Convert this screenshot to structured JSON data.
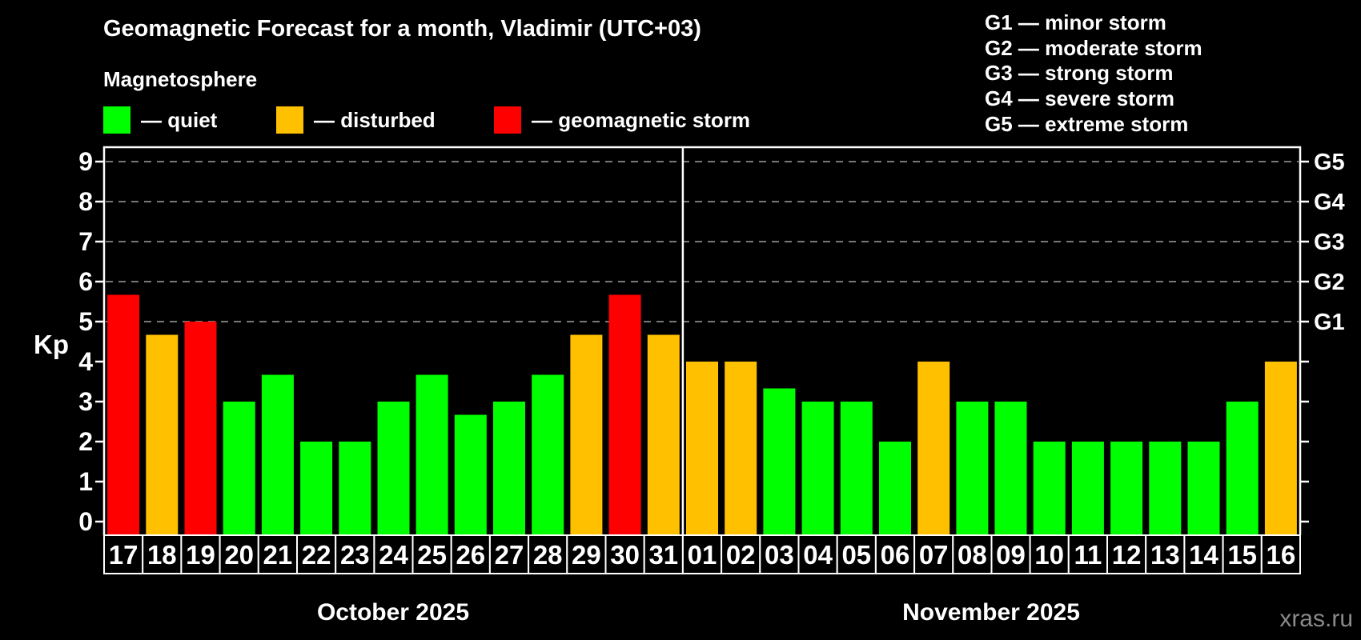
{
  "footer": {
    "watermark": "xras.ru"
  },
  "legend": {
    "heading": "Magnetosphere",
    "items": [
      {
        "status": "quiet",
        "label": "— quiet",
        "color": "#00ff00"
      },
      {
        "status": "disturbed",
        "label": "— disturbed",
        "color": "#ffc000"
      },
      {
        "status": "storm",
        "label": "— geomagnetic storm",
        "color": "#ff0000"
      }
    ]
  },
  "g_legend": [
    "G1 — minor storm",
    "G2 — moderate storm",
    "G3 — strong storm",
    "G4 — severe storm",
    "G5 — extreme storm"
  ],
  "chart_data": {
    "type": "bar",
    "title": "Geomagnetic Forecast for a month, Vladimir (UTC+03)",
    "ylabel": "Kp",
    "ylim": [
      0,
      9.35
    ],
    "yticks": [
      0,
      1,
      2,
      3,
      4,
      5,
      6,
      7,
      8,
      9
    ],
    "grid_kp": [
      5,
      6,
      7,
      8,
      9
    ],
    "grid": "dashed horizontal at Kp 5-9 only",
    "right_axis": [
      {
        "kp": 5,
        "label": "G1"
      },
      {
        "kp": 6,
        "label": "G2"
      },
      {
        "kp": 7,
        "label": "G3"
      },
      {
        "kp": 8,
        "label": "G4"
      },
      {
        "kp": 9,
        "label": "G5"
      }
    ],
    "colors": {
      "quiet": "#00ff00",
      "disturbed": "#ffc000",
      "storm": "#ff0000",
      "grid": "#a0a0a0",
      "axis": "#ffffff"
    },
    "series": [
      {
        "month": "October 2025",
        "days": [
          {
            "day": "17",
            "kp": 5.67,
            "status": "storm"
          },
          {
            "day": "18",
            "kp": 4.67,
            "status": "disturbed"
          },
          {
            "day": "19",
            "kp": 5.0,
            "status": "storm"
          },
          {
            "day": "20",
            "kp": 3.0,
            "status": "quiet"
          },
          {
            "day": "21",
            "kp": 3.67,
            "status": "quiet"
          },
          {
            "day": "22",
            "kp": 2.0,
            "status": "quiet"
          },
          {
            "day": "23",
            "kp": 2.0,
            "status": "quiet"
          },
          {
            "day": "24",
            "kp": 3.0,
            "status": "quiet"
          },
          {
            "day": "25",
            "kp": 3.67,
            "status": "quiet"
          },
          {
            "day": "26",
            "kp": 2.67,
            "status": "quiet"
          },
          {
            "day": "27",
            "kp": 3.0,
            "status": "quiet"
          },
          {
            "day": "28",
            "kp": 3.67,
            "status": "quiet"
          },
          {
            "day": "29",
            "kp": 4.67,
            "status": "disturbed"
          },
          {
            "day": "30",
            "kp": 5.67,
            "status": "storm"
          },
          {
            "day": "31",
            "kp": 4.67,
            "status": "disturbed"
          }
        ]
      },
      {
        "month": "November 2025",
        "days": [
          {
            "day": "01",
            "kp": 4.0,
            "status": "disturbed"
          },
          {
            "day": "02",
            "kp": 4.0,
            "status": "disturbed"
          },
          {
            "day": "03",
            "kp": 3.33,
            "status": "quiet"
          },
          {
            "day": "04",
            "kp": 3.0,
            "status": "quiet"
          },
          {
            "day": "05",
            "kp": 3.0,
            "status": "quiet"
          },
          {
            "day": "06",
            "kp": 2.0,
            "status": "quiet"
          },
          {
            "day": "07",
            "kp": 4.0,
            "status": "disturbed"
          },
          {
            "day": "08",
            "kp": 3.0,
            "status": "quiet"
          },
          {
            "day": "09",
            "kp": 3.0,
            "status": "quiet"
          },
          {
            "day": "10",
            "kp": 2.0,
            "status": "quiet"
          },
          {
            "day": "11",
            "kp": 2.0,
            "status": "quiet"
          },
          {
            "day": "12",
            "kp": 2.0,
            "status": "quiet"
          },
          {
            "day": "13",
            "kp": 2.0,
            "status": "quiet"
          },
          {
            "day": "14",
            "kp": 2.0,
            "status": "quiet"
          },
          {
            "day": "15",
            "kp": 3.0,
            "status": "quiet"
          },
          {
            "day": "16",
            "kp": 4.0,
            "status": "disturbed"
          }
        ]
      }
    ]
  }
}
